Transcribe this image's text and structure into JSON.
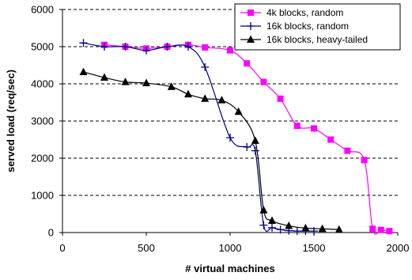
{
  "chart_data": {
    "type": "line",
    "title": "",
    "xlabel": "# virtual machines",
    "ylabel": "served load (req/sec)",
    "xlim": [
      0,
      2000
    ],
    "ylim": [
      0,
      6000
    ],
    "xticks": [
      0,
      500,
      1000,
      1500,
      2000
    ],
    "yticks": [
      0,
      1000,
      2000,
      3000,
      4000,
      5000,
      6000
    ],
    "grid": "horizontal dashed",
    "legend_position": "top-right",
    "series": [
      {
        "name": "4k blocks, random",
        "color": "#ff00ff",
        "marker": "square",
        "x": [
          250,
          375,
          500,
          625,
          750,
          850,
          1000,
          1100,
          1200,
          1300,
          1400,
          1500,
          1600,
          1700,
          1800,
          1850,
          1900,
          1950
        ],
        "y": [
          5050,
          5000,
          4950,
          5000,
          5050,
          4980,
          4900,
          4550,
          4050,
          3600,
          2870,
          2800,
          2500,
          2200,
          1950,
          100,
          70,
          40
        ]
      },
      {
        "name": "16k blocks, random",
        "color": "#000080",
        "marker": "plus",
        "x": [
          125,
          250,
          375,
          500,
          625,
          750,
          850,
          1000,
          1100,
          1150,
          1200,
          1250,
          1300,
          1350,
          1400,
          1450,
          1500
        ],
        "y": [
          5100,
          5000,
          5000,
          4900,
          5000,
          5000,
          4450,
          2550,
          2300,
          2200,
          200,
          130,
          80,
          50,
          40,
          40,
          40
        ]
      },
      {
        "name": "16k blocks, heavy-tailed",
        "color": "#000000",
        "marker": "triangle",
        "x": [
          125,
          250,
          375,
          500,
          650,
          750,
          850,
          950,
          1050,
          1150,
          1200,
          1250,
          1350,
          1450,
          1550,
          1650
        ],
        "y": [
          4320,
          4170,
          4050,
          4020,
          3920,
          3720,
          3600,
          3560,
          3250,
          2470,
          600,
          320,
          180,
          120,
          100,
          80
        ]
      }
    ]
  }
}
